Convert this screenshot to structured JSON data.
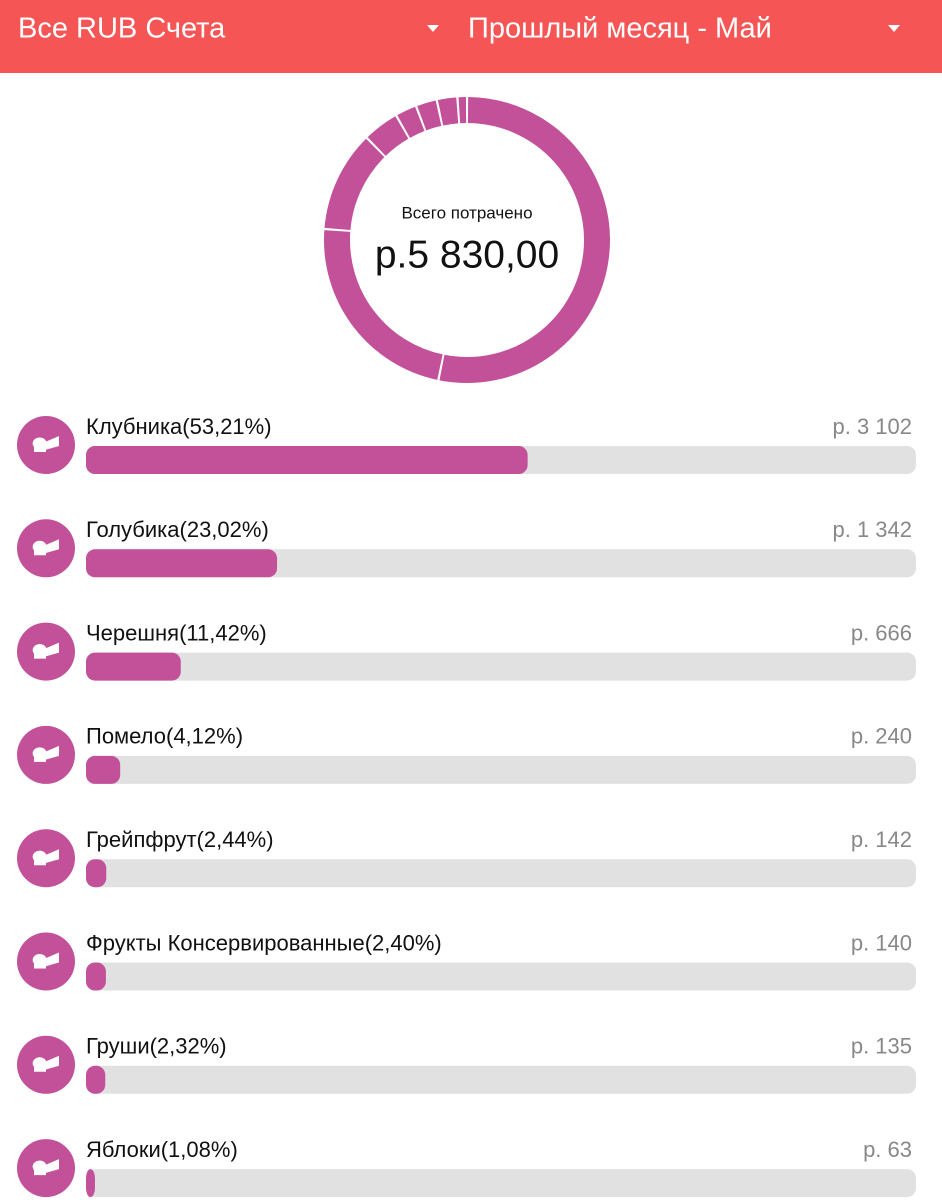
{
  "header": {
    "account": "Все RUB Счета",
    "period": "Прошлый месяц - Май"
  },
  "summary": {
    "caption": "Всего потрачено",
    "total": "р.5 830,00"
  },
  "color": "#c2519a",
  "items": [
    {
      "label": "Клубника(53,21%)",
      "percent": 53.21,
      "amount": "р. 3 102"
    },
    {
      "label": "Голубика(23,02%)",
      "percent": 23.02,
      "amount": "р. 1 342"
    },
    {
      "label": "Черешня(11,42%)",
      "percent": 11.42,
      "amount": "р. 666"
    },
    {
      "label": "Помело(4,12%)",
      "percent": 4.12,
      "amount": "р. 240"
    },
    {
      "label": "Грейпфрут(2,44%)",
      "percent": 2.44,
      "amount": "р. 142"
    },
    {
      "label": "Фрукты Консервированные(2,40%)",
      "percent": 2.4,
      "amount": "р. 140"
    },
    {
      "label": "Груши(2,32%)",
      "percent": 2.32,
      "amount": "р. 135"
    },
    {
      "label": "Яблоки(1,08%)",
      "percent": 1.08,
      "amount": "р. 63"
    }
  ]
}
